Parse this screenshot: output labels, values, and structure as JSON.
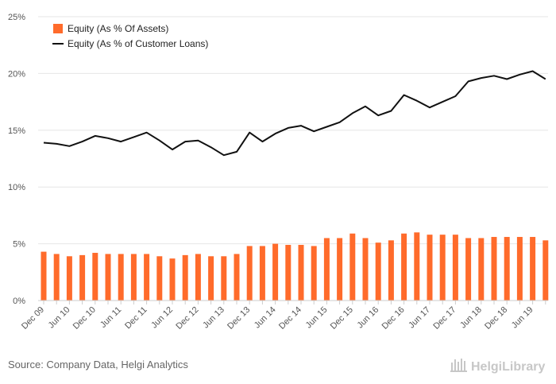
{
  "chart_data": {
    "type": "bar",
    "categories": [
      "Dec 09",
      "Mar 10",
      "Jun 10",
      "Sep 10",
      "Dec 10",
      "Mar 11",
      "Jun 11",
      "Sep 11",
      "Dec 11",
      "Mar 12",
      "Jun 12",
      "Sep 12",
      "Dec 12",
      "Mar 13",
      "Jun 13",
      "Sep 13",
      "Dec 13",
      "Mar 14",
      "Jun 14",
      "Sep 14",
      "Dec 14",
      "Mar 15",
      "Jun 15",
      "Sep 15",
      "Dec 15",
      "Mar 16",
      "Jun 16",
      "Sep 16",
      "Dec 16",
      "Mar 17",
      "Jun 17",
      "Sep 17",
      "Dec 17",
      "Mar 18",
      "Jun 18",
      "Sep 18",
      "Dec 18",
      "Mar 19",
      "Jun 19",
      "Sep 19"
    ],
    "tick_labels": [
      "Dec 09",
      "Jun 10",
      "Dec 10",
      "Jun 11",
      "Dec 11",
      "Jun 12",
      "Dec 12",
      "Jun 13",
      "Dec 13",
      "Jun 14",
      "Dec 14",
      "Jun 15",
      "Dec 15",
      "Jun 16",
      "Dec 16",
      "Jun 17",
      "Dec 17",
      "Jun 18",
      "Dec 18",
      "Jun 19"
    ],
    "series": [
      {
        "name": "Equity (As % Of Assets)",
        "kind": "bar",
        "color": "#ff6b2b",
        "values": [
          4.3,
          4.1,
          3.9,
          4.0,
          4.2,
          4.1,
          4.1,
          4.1,
          4.1,
          3.9,
          3.7,
          4.0,
          4.1,
          3.9,
          3.9,
          4.1,
          4.8,
          4.8,
          5.0,
          4.9,
          4.9,
          4.8,
          5.5,
          5.5,
          5.9,
          5.5,
          5.1,
          5.3,
          5.9,
          6.0,
          5.8,
          5.8,
          5.8,
          5.5,
          5.5,
          5.6,
          5.6,
          5.6,
          5.6,
          5.3
        ]
      },
      {
        "name": "Equity (As % of Customer Loans)",
        "kind": "line",
        "color": "#111111",
        "values": [
          13.9,
          13.8,
          13.6,
          14.0,
          14.5,
          14.3,
          14.0,
          14.4,
          14.8,
          14.1,
          13.3,
          14.0,
          14.1,
          13.5,
          12.8,
          13.1,
          14.8,
          14.0,
          14.7,
          15.2,
          15.4,
          14.9,
          15.3,
          15.7,
          16.5,
          17.1,
          16.3,
          16.7,
          18.1,
          17.6,
          17.0,
          17.5,
          18.0,
          19.3,
          19.6,
          19.8,
          19.5,
          19.9,
          20.2,
          19.5
        ]
      }
    ],
    "y_tick_labels": [
      "0%",
      "5%",
      "10%",
      "15%",
      "20%",
      "25%"
    ],
    "ylim": [
      0,
      25
    ],
    "grid": true,
    "legend_position": "top-left"
  },
  "footer": {
    "source": "Source: Company Data, Helgi Analytics",
    "brand": "HelgiLibrary"
  }
}
